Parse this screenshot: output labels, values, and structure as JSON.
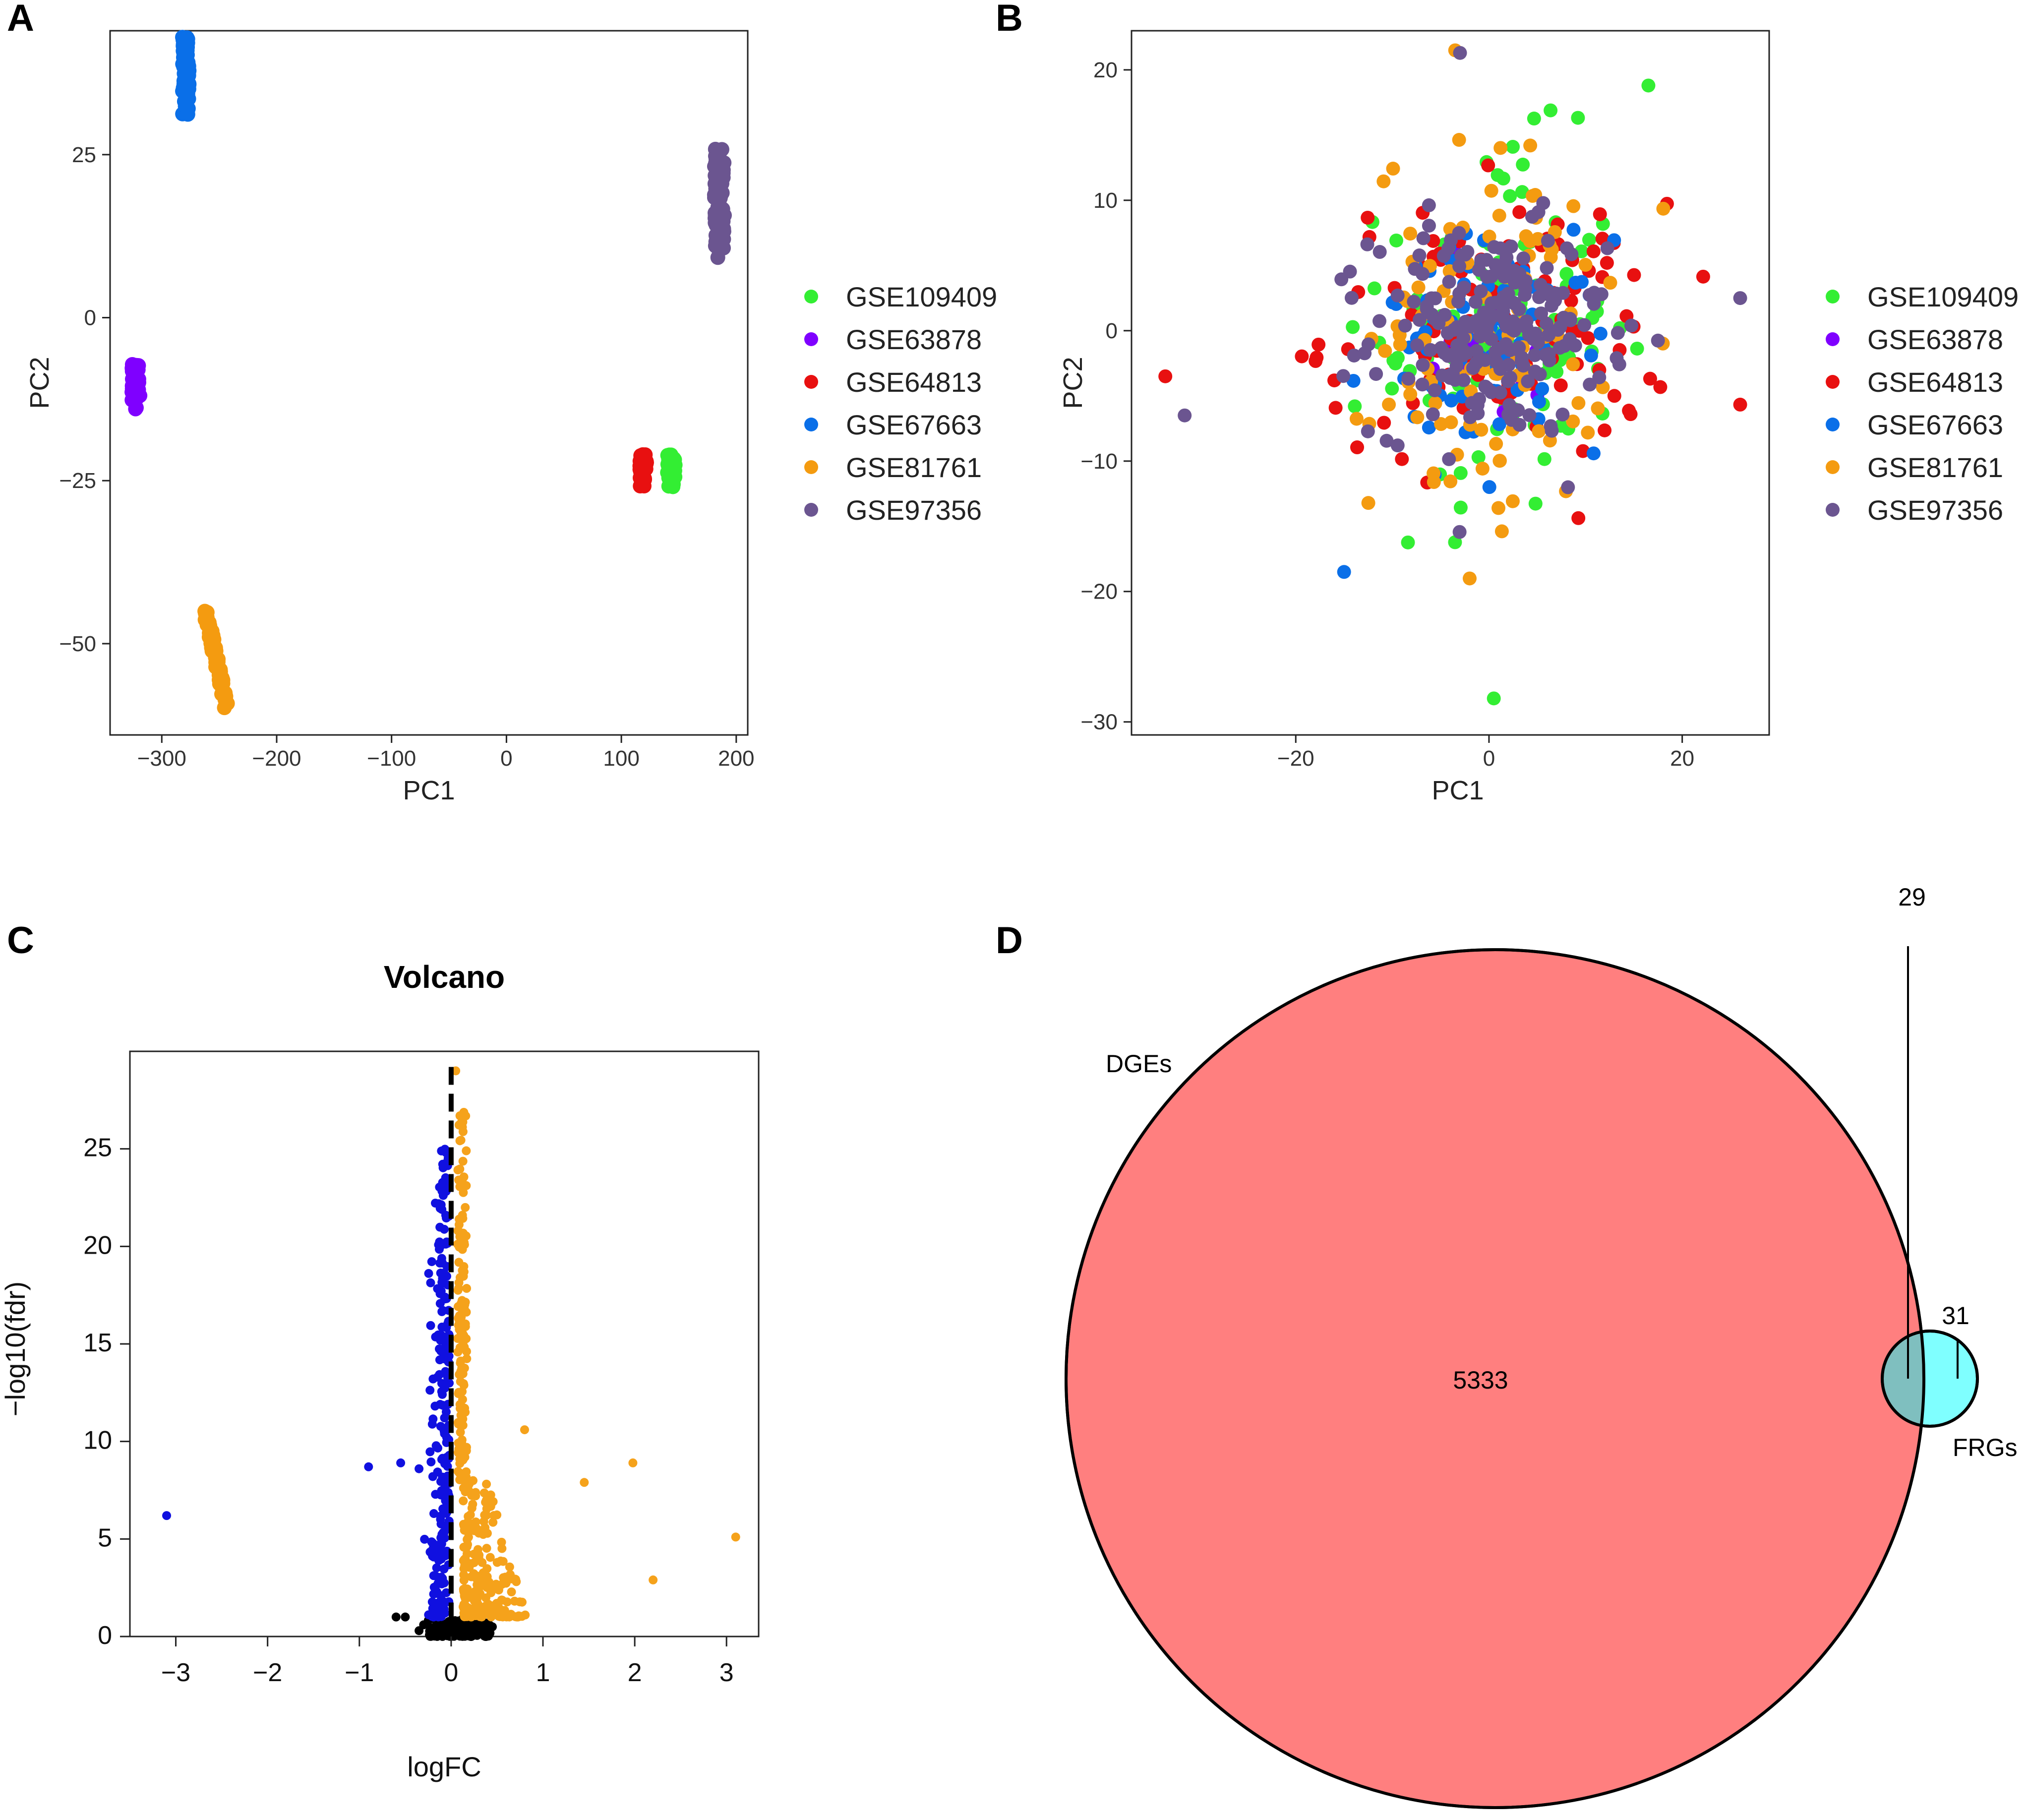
{
  "colors": {
    "GSE109409": "#33ee33",
    "GSE63878": "#7f00ff",
    "GSE64813": "#e81010",
    "GSE67663": "#0a6fe8",
    "GSE81761": "#f49b10",
    "GSE97356": "#6b5590",
    "volcano_up": "#f5a21b",
    "volcano_down": "#1010e0",
    "volcano_ns": "#000000",
    "venn_dges": "#ff7f7f",
    "venn_frgs": "#7fffff",
    "venn_overlap": "#7fbfbf"
  },
  "panels": {
    "a": "A",
    "b": "B",
    "c": "C",
    "d": "D"
  },
  "chart_data": [
    {
      "id": "A",
      "type": "scatter",
      "xlabel": "PC1",
      "ylabel": "PC2",
      "xlim": [
        -345,
        210
      ],
      "ylim": [
        -64,
        44
      ],
      "xticks": [
        "−300",
        "−200",
        "−100",
        "0",
        "100",
        "200"
      ],
      "xtick_values": [
        -300,
        -200,
        -100,
        0,
        100,
        200
      ],
      "yticks": [
        "−50",
        "−25",
        "0",
        "25"
      ],
      "ytick_values": [
        -50,
        -25,
        0,
        25
      ],
      "legend": [
        "GSE109409",
        "GSE63878",
        "GSE64813",
        "GSE67663",
        "GSE81761",
        "GSE97356"
      ],
      "legend_position": "right",
      "series": [
        {
          "name": "GSE67663",
          "x_range": [
            -282,
            -276
          ],
          "y_range": [
            31,
            43
          ],
          "n": 70
        },
        {
          "name": "GSE97356",
          "x_range": [
            181,
            190
          ],
          "y_range": [
            9,
            26
          ],
          "n": 90
        },
        {
          "name": "GSE63878",
          "x_range": [
            -326,
            -319
          ],
          "y_range": [
            -14,
            -7
          ],
          "n": 40
        },
        {
          "name": "GSE64813",
          "x_range": [
            116,
            122
          ],
          "y_range": [
            -26,
            -21
          ],
          "n": 40
        },
        {
          "name": "GSE109409",
          "x_range": [
            140,
            147
          ],
          "y_range": [
            -26,
            -21
          ],
          "n": 40
        },
        {
          "name": "GSE81761",
          "x_range": [
            -264,
            -242
          ],
          "y_range": [
            -60,
            -45
          ],
          "n": 80
        }
      ]
    },
    {
      "id": "B",
      "type": "scatter",
      "xlabel": "PC1",
      "ylabel": "PC2",
      "xlim": [
        -37,
        29
      ],
      "ylim": [
        -31,
        23
      ],
      "xticks": [
        "−20",
        "0",
        "20"
      ],
      "xtick_values": [
        -20,
        0,
        20
      ],
      "yticks": [
        "−30",
        "−20",
        "−10",
        "0",
        "10",
        "20"
      ],
      "ytick_values": [
        -30,
        -20,
        -10,
        0,
        10,
        20
      ],
      "legend": [
        "GSE109409",
        "GSE63878",
        "GSE64813",
        "GSE67663",
        "GSE81761",
        "GSE97356"
      ],
      "legend_position": "right",
      "series": [
        {
          "name": "GSE109409",
          "center": [
            1,
            0
          ],
          "spread": [
            6,
            7
          ],
          "n": 110
        },
        {
          "name": "GSE63878",
          "center": [
            1,
            0
          ],
          "spread": [
            5,
            4
          ],
          "n": 15
        },
        {
          "name": "GSE64813",
          "center": [
            1,
            0
          ],
          "spread": [
            9,
            5
          ],
          "n": 110
        },
        {
          "name": "GSE67663",
          "center": [
            0,
            -1
          ],
          "spread": [
            6,
            4
          ],
          "n": 80
        },
        {
          "name": "GSE81761",
          "center": [
            0,
            0
          ],
          "spread": [
            6,
            7
          ],
          "n": 110
        },
        {
          "name": "GSE97356",
          "center": [
            0,
            0
          ],
          "spread": [
            6,
            4
          ],
          "n": 220
        }
      ],
      "annotated_points": [
        {
          "name": "GSE109409",
          "x": 0.5,
          "y": -28.2
        },
        {
          "name": "GSE109409",
          "x": 16.5,
          "y": 18.8
        },
        {
          "name": "GSE81761",
          "x": -3.5,
          "y": 21.5
        },
        {
          "name": "GSE97356",
          "x": -3,
          "y": 21.3
        },
        {
          "name": "GSE64813",
          "x": -33.5,
          "y": -3.5
        },
        {
          "name": "GSE97356",
          "x": -31.5,
          "y": -6.5
        },
        {
          "name": "GSE97356",
          "x": 26,
          "y": 2.5
        },
        {
          "name": "GSE67663",
          "x": -15,
          "y": -18.5
        },
        {
          "name": "GSE81761",
          "x": -2,
          "y": -19
        }
      ]
    },
    {
      "id": "C",
      "type": "scatter",
      "title": "Volcano",
      "xlabel": "logFC",
      "ylabel": "−log10(fdr)",
      "xlim": [
        -3.5,
        3.35
      ],
      "ylim": [
        0,
        30
      ],
      "xticks": [
        "−3",
        "−2",
        "−1",
        "0",
        "1",
        "2",
        "3"
      ],
      "xtick_values": [
        -3,
        -2,
        -1,
        0,
        1,
        2,
        3
      ],
      "yticks": [
        "0",
        "5",
        "10",
        "15",
        "20",
        "25"
      ],
      "ytick_values": [
        0,
        5,
        10,
        15,
        20,
        25
      ],
      "threshold_line_x": 0,
      "series": [
        {
          "name": "up",
          "color_key": "volcano_up",
          "n": 360
        },
        {
          "name": "down",
          "color_key": "volcano_down",
          "n": 260
        },
        {
          "name": "ns",
          "color_key": "volcano_ns",
          "n": 130
        }
      ],
      "outliers": [
        {
          "series": "down",
          "x": -3.1,
          "y": 6.2
        },
        {
          "series": "down",
          "x": -0.9,
          "y": 8.7
        },
        {
          "series": "down",
          "x": -0.55,
          "y": 8.9
        },
        {
          "series": "down",
          "x": -0.35,
          "y": 8.6
        },
        {
          "series": "down",
          "x": -0.2,
          "y": 8.2
        },
        {
          "series": "up",
          "x": 3.1,
          "y": 5.1
        },
        {
          "series": "up",
          "x": 2.2,
          "y": 2.9
        },
        {
          "series": "up",
          "x": 1.98,
          "y": 8.9
        },
        {
          "series": "up",
          "x": 1.45,
          "y": 7.9
        },
        {
          "series": "up",
          "x": 0.8,
          "y": 10.6
        },
        {
          "series": "up",
          "x": 0.05,
          "y": 29
        }
      ]
    },
    {
      "id": "D",
      "type": "venn",
      "sets": [
        {
          "name": "DGEs",
          "label": "DGEs",
          "only_count": "5333"
        },
        {
          "name": "FRGs",
          "label": "FRGs",
          "only_count": "31"
        }
      ],
      "intersection_count": "29"
    }
  ]
}
